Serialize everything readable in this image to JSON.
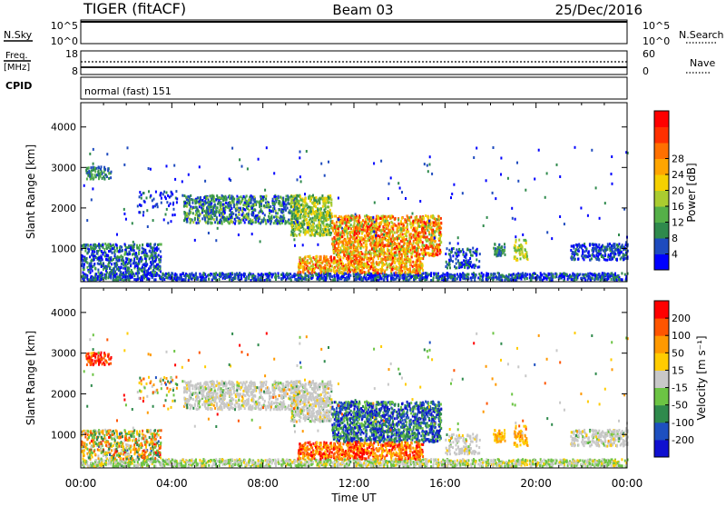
{
  "header": {
    "radar": "TIGER (fitACF)",
    "beam": "Beam 03",
    "date": "25/Dec/2016"
  },
  "top_panels": {
    "nsky_label": "N.Sky",
    "nsky_ticks": [
      "10^5",
      "10^0"
    ],
    "nsearch_label": "N.Search",
    "freq_label_line1": "Freq.",
    "freq_label_line2": "[MHz]",
    "freq_ticks": [
      "18",
      "8"
    ],
    "nave_ticks": [
      "60",
      "0"
    ],
    "nave_label": "Nave",
    "cpid_label": "CPID",
    "cpid_text": "normal (fast) 151"
  },
  "chart_data": [
    {
      "type": "heatmap",
      "name": "power",
      "ylabel": "Slant Range [km]",
      "xlabel": "",
      "x_range_hours": [
        0,
        24
      ],
      "x_ticks": [
        "00:00",
        "04:00",
        "08:00",
        "12:00",
        "16:00",
        "20:00",
        "00:00"
      ],
      "y_range": [
        180,
        4600
      ],
      "y_ticks": [
        1000,
        2000,
        3000,
        4000
      ],
      "colorbar": {
        "label": "Power [dB]",
        "ticks": [
          "4",
          "8",
          "12",
          "16",
          "20",
          "24",
          "28"
        ],
        "colors": [
          "#0000ff",
          "#1e4bbe",
          "#2f8a4c",
          "#55b048",
          "#aacc30",
          "#f5d000",
          "#ffa500",
          "#ff7000",
          "#ff3000",
          "#ff0000"
        ]
      }
    },
    {
      "type": "heatmap",
      "name": "velocity",
      "ylabel": "Slant Range [km]",
      "xlabel": "Time UT",
      "x_range_hours": [
        0,
        24
      ],
      "x_ticks": [
        "00:00",
        "04:00",
        "08:00",
        "12:00",
        "16:00",
        "20:00",
        "00:00"
      ],
      "y_range": [
        180,
        4600
      ],
      "y_ticks": [
        1000,
        2000,
        3000,
        4000
      ],
      "colorbar": {
        "label": "Velocity [m s⁻¹]",
        "ticks": [
          "200",
          "100",
          "50",
          "15",
          "-15",
          "-50",
          "-100",
          "-200"
        ],
        "colors": [
          "#1010d0",
          "#1e50c0",
          "#2f8a4c",
          "#6cc444",
          "#c8c8c8",
          "#ffcc00",
          "#ff9900",
          "#ff5500",
          "#ff0000"
        ]
      }
    }
  ]
}
